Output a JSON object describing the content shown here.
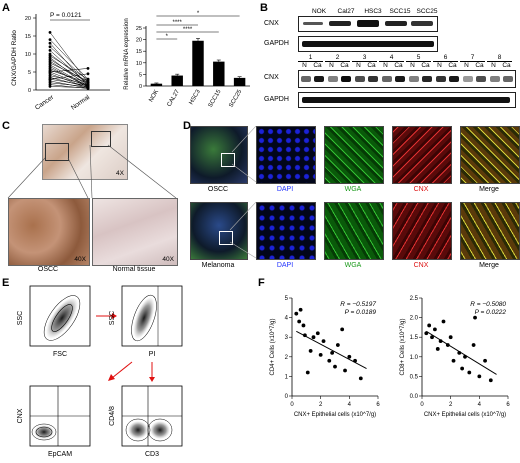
{
  "panels": {
    "A": "A",
    "B": "B",
    "C": "C",
    "D": "D",
    "E": "E",
    "F": "F"
  },
  "panelA": {
    "paired": {
      "ylabel": "CNX/GAPDH Ratio",
      "pvalue": "P = 0.0121",
      "xcats": [
        "Cancer",
        "Normal"
      ],
      "yticks": [
        "0",
        "5",
        "10",
        "15",
        "20"
      ]
    },
    "bars": {
      "ylabel": "Relative mRNA expression",
      "categories": [
        "NOK",
        "CAL27",
        "HSC3",
        "SCC15",
        "SCC25"
      ],
      "yticks": [
        "0",
        "5",
        "10",
        "15",
        "20",
        "25"
      ],
      "sig": [
        "*",
        "****",
        "****",
        "*"
      ]
    }
  },
  "panelB": {
    "top_lanes": [
      "NOK",
      "Cal27",
      "HSC3",
      "SCC15",
      "SCC25"
    ],
    "row_labels": [
      "CNX",
      "GAPDH",
      "CNX",
      "GAPDH"
    ],
    "patients": [
      "1",
      "2",
      "3",
      "4",
      "5",
      "6",
      "7",
      "8"
    ],
    "nc": [
      "N",
      "Ca"
    ]
  },
  "panelC": {
    "mags": [
      "4X",
      "40X",
      "40X"
    ],
    "captions": [
      "OSCC",
      "Normal tissue"
    ]
  },
  "panelD": {
    "rows": [
      {
        "label": "OSCC",
        "cols": [
          "DAPI",
          "WGA",
          "CNX",
          "Merge"
        ]
      },
      {
        "label": "Melanoma",
        "cols": [
          "DAPI",
          "WGA",
          "CNX",
          "Merge"
        ]
      }
    ],
    "colors": {
      "DAPI": "#2233ff",
      "WGA": "#1a9a1a",
      "CNX": "#dd1111",
      "Merge": "#000000"
    }
  },
  "panelE": {
    "plots": [
      {
        "x": "FSC",
        "y": "SSC"
      },
      {
        "x": "PI",
        "y": "SSC"
      },
      {
        "x": "EpCAM",
        "y": "CNX"
      },
      {
        "x": "CD3",
        "y": "CD4/8"
      }
    ]
  },
  "chart_data": [
    {
      "type": "bar",
      "title": "",
      "categories": [
        "NOK",
        "CAL27",
        "HSC3",
        "SCC15",
        "SCC25"
      ],
      "values": [
        1,
        4.5,
        19.5,
        10.5,
        3.5
      ],
      "errors": [
        0.3,
        0.6,
        1.0,
        0.7,
        0.5
      ],
      "ylabel": "Relative mRNA expression",
      "ylim": [
        0,
        25
      ]
    },
    {
      "type": "scatter",
      "xlabel": "CNX+ Epithelial cells (x10^7/g)",
      "ylabel": "CD4+ Cells (x10^7/g)",
      "annotation": [
        "R = −0.5197",
        "P = 0.0189"
      ],
      "xlim": [
        0,
        6
      ],
      "ylim": [
        0,
        5
      ],
      "xticks": [
        "0",
        "2",
        "4",
        "6"
      ],
      "yticks": [
        "0",
        "1",
        "2",
        "3",
        "4",
        "5"
      ],
      "points": [
        [
          0.3,
          4.2
        ],
        [
          0.5,
          3.8
        ],
        [
          0.6,
          4.4
        ],
        [
          0.8,
          3.6
        ],
        [
          0.9,
          3.1
        ],
        [
          1.1,
          1.2
        ],
        [
          1.3,
          2.3
        ],
        [
          1.5,
          3.0
        ],
        [
          1.8,
          3.2
        ],
        [
          2.0,
          2.1
        ],
        [
          2.2,
          2.8
        ],
        [
          2.6,
          1.8
        ],
        [
          2.8,
          2.2
        ],
        [
          3.0,
          1.5
        ],
        [
          3.2,
          2.6
        ],
        [
          3.5,
          3.4
        ],
        [
          3.7,
          1.3
        ],
        [
          4.0,
          2.0
        ],
        [
          4.4,
          1.8
        ],
        [
          4.8,
          0.9
        ]
      ],
      "fit": [
        [
          0.3,
          3.3
        ],
        [
          5.2,
          1.4
        ]
      ]
    },
    {
      "type": "scatter",
      "xlabel": "CNX+ Epithelial cells (x10^7/g)",
      "ylabel": "CD8+ Cells (x10^7/g)",
      "annotation": [
        "R = −0.5080",
        "P = 0.0222"
      ],
      "xlim": [
        0,
        6
      ],
      "ylim": [
        0,
        2.5
      ],
      "xticks": [
        "0",
        "2",
        "4",
        "6"
      ],
      "yticks": [
        "0.0",
        "0.5",
        "1.0",
        "1.5",
        "2.0",
        "2.5"
      ],
      "points": [
        [
          0.3,
          1.6
        ],
        [
          0.5,
          1.8
        ],
        [
          0.7,
          1.5
        ],
        [
          0.9,
          1.7
        ],
        [
          1.1,
          1.2
        ],
        [
          1.3,
          1.4
        ],
        [
          1.5,
          1.9
        ],
        [
          1.8,
          1.3
        ],
        [
          2.0,
          1.5
        ],
        [
          2.2,
          0.9
        ],
        [
          2.6,
          1.1
        ],
        [
          2.8,
          0.7
        ],
        [
          3.0,
          1.0
        ],
        [
          3.3,
          0.6
        ],
        [
          3.6,
          1.3
        ],
        [
          3.7,
          2.0
        ],
        [
          4.0,
          0.5
        ],
        [
          4.4,
          0.9
        ],
        [
          4.8,
          0.4
        ]
      ],
      "fit": [
        [
          0.3,
          1.65
        ],
        [
          5.2,
          0.55
        ]
      ]
    }
  ]
}
